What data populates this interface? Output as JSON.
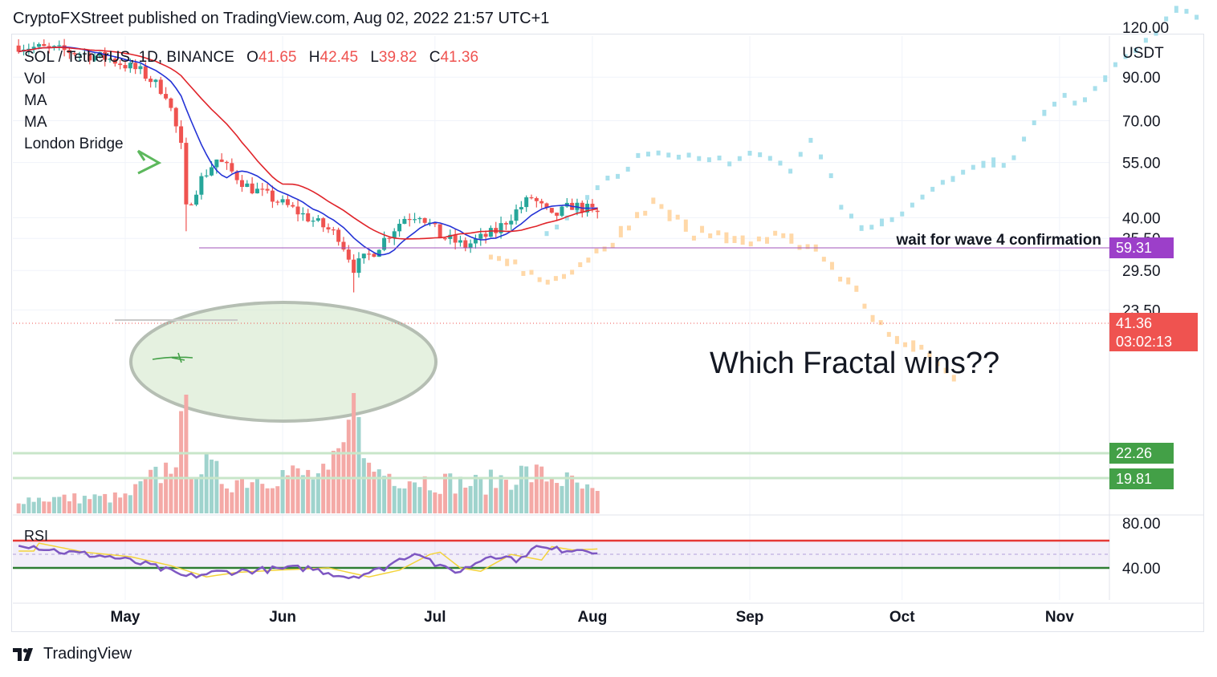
{
  "header": {
    "published": "CryptoFXStreet published on TradingView.com, Aug 02, 2022 21:57 UTC+1"
  },
  "legend": {
    "symbol": "SOL / TetherUS, 1D, BINANCE",
    "o_label": "O",
    "o": "41.65",
    "h_label": "H",
    "h": "42.45",
    "l_label": "L",
    "l": "39.82",
    "c_label": "C",
    "c": "41.36",
    "indicators": [
      "Vol",
      "MA",
      "MA",
      "London Bridge"
    ]
  },
  "footer": {
    "brand": "TradingView"
  },
  "colors": {
    "up": "#26a69a",
    "down": "#ef5350",
    "ma_fast": "#2433d6",
    "ma_slow": "#e0242a",
    "projection_bull": "#a8e0ec",
    "projection_bear": "#ffd8a8",
    "rsi": "#7e57c2",
    "rsi_ma": "#f3d33a",
    "target_line": "#9c27b0",
    "tag_target": "#9c3fc9",
    "tag_price": "#ef5350",
    "tag_support": "#43a047"
  },
  "chart_data": {
    "type": "candlestick",
    "currency": "USDT",
    "y_ticks": [
      "120.00",
      "90.00",
      "70.00",
      "55.00",
      "40.00",
      "35.50",
      "29.50",
      "23.50"
    ],
    "x_ticks": [
      "May",
      "Jun",
      "Jul",
      "Aug",
      "Sep",
      "Oct",
      "Nov"
    ],
    "annotations": {
      "target_text": "wait for wave 4 confirmation",
      "question": "Which Fractal wins??"
    },
    "price_tags": {
      "target": "59.31",
      "last": "41.36",
      "countdown": "03:02:13",
      "support_1": "22.26",
      "support_2": "19.81"
    },
    "rsi": {
      "label": "RSI",
      "ticks": [
        "80.00",
        "40.00"
      ]
    },
    "candles_approx": [
      {
        "date": "2022-04-12",
        "o": 104,
        "h": 110,
        "l": 100,
        "c": 106
      },
      {
        "date": "2022-04-20",
        "o": 103,
        "h": 108,
        "l": 98,
        "c": 101
      },
      {
        "date": "2022-04-28",
        "o": 98,
        "h": 102,
        "l": 92,
        "c": 94
      },
      {
        "date": "2022-05-05",
        "o": 91,
        "h": 95,
        "l": 80,
        "c": 82
      },
      {
        "date": "2022-05-09",
        "o": 72,
        "h": 76,
        "l": 58,
        "c": 60
      },
      {
        "date": "2022-05-12",
        "o": 52,
        "h": 56,
        "l": 38,
        "c": 44
      },
      {
        "date": "2022-05-18",
        "o": 52,
        "h": 57,
        "l": 49,
        "c": 53
      },
      {
        "date": "2022-05-26",
        "o": 48,
        "h": 50,
        "l": 42,
        "c": 44
      },
      {
        "date": "2022-06-05",
        "o": 42,
        "h": 44,
        "l": 39,
        "c": 40
      },
      {
        "date": "2022-06-13",
        "o": 36,
        "h": 37,
        "l": 28,
        "c": 30
      },
      {
        "date": "2022-06-18",
        "o": 32,
        "h": 34,
        "l": 28,
        "c": 33
      },
      {
        "date": "2022-06-25",
        "o": 38,
        "h": 42,
        "l": 37,
        "c": 41
      },
      {
        "date": "2022-07-03",
        "o": 35,
        "h": 37,
        "l": 33,
        "c": 34
      },
      {
        "date": "2022-07-12",
        "o": 36,
        "h": 39,
        "l": 34,
        "c": 37
      },
      {
        "date": "2022-07-20",
        "o": 41,
        "h": 46,
        "l": 40,
        "c": 44
      },
      {
        "date": "2022-07-27",
        "o": 38,
        "h": 43,
        "l": 37,
        "c": 41
      },
      {
        "date": "2022-08-02",
        "o": 41.65,
        "h": 42.45,
        "l": 39.82,
        "c": 41.36
      }
    ],
    "horizontal_levels": [
      59.31,
      22.26,
      19.81
    ]
  }
}
